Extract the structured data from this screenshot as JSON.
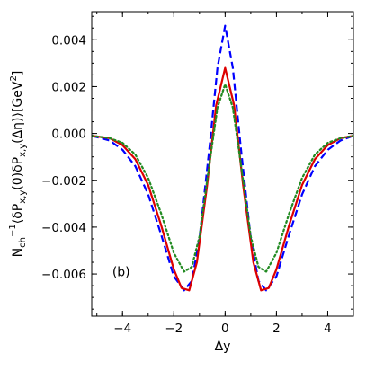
{
  "chart_data": {
    "type": "line",
    "xlabel": "Δy",
    "ylabel_parts": {
      "n": "N",
      "sub1": "ch",
      "sup1": "−1",
      "body1": "⟨δP",
      "sub2": "x,y",
      "body2": "(0)δP",
      "sub3": "x,y",
      "body3": "(Δη)⟩[GeV",
      "sup2": "2",
      "body4": "]"
    },
    "annotation": "(b)",
    "xlim": [
      -5.2,
      5.0
    ],
    "ylim": [
      -0.0078,
      0.0052
    ],
    "xticks": [
      -4,
      -2,
      0,
      2,
      4
    ],
    "xtick_labels": [
      "−4",
      "−2",
      "0",
      "2",
      "4"
    ],
    "yticks": [
      0.004,
      0.002,
      0.0,
      -0.002,
      -0.004,
      -0.006
    ],
    "ytick_labels": [
      "0.004",
      "0.002",
      "0.000",
      "−0.002",
      "−0.004",
      "−0.006"
    ],
    "grid": false,
    "series": [
      {
        "color": "#0000ff",
        "style": "dashed",
        "x": [
          -5.2,
          -4.5,
          -4.0,
          -3.5,
          -3.0,
          -2.5,
          -2.0,
          -1.6,
          -1.3,
          -1.0,
          -0.6,
          -0.3,
          0.0,
          0.3,
          0.6,
          1.0,
          1.3,
          1.6,
          2.0,
          2.5,
          3.0,
          3.5,
          4.0,
          4.5,
          5.0
        ],
        "y": [
          -0.0001,
          -0.0003,
          -0.0007,
          -0.0014,
          -0.0026,
          -0.0043,
          -0.0061,
          -0.0067,
          -0.0063,
          -0.0045,
          -0.0005,
          0.0028,
          0.0046,
          0.0028,
          -0.0005,
          -0.0045,
          -0.0063,
          -0.0067,
          -0.0061,
          -0.0043,
          -0.0026,
          -0.0014,
          -0.0007,
          -0.0003,
          -0.0001
        ]
      },
      {
        "color": "#dd0000",
        "style": "solid",
        "x": [
          -5.2,
          -4.5,
          -4.0,
          -3.5,
          -3.0,
          -2.5,
          -2.0,
          -1.7,
          -1.4,
          -1.1,
          -0.7,
          -0.35,
          0.0,
          0.35,
          0.7,
          1.1,
          1.4,
          1.7,
          2.0,
          2.5,
          3.0,
          3.5,
          4.0,
          4.5,
          5.0
        ],
        "y": [
          -0.0001,
          -0.0002,
          -0.0005,
          -0.0011,
          -0.0022,
          -0.0039,
          -0.0058,
          -0.0066,
          -0.0067,
          -0.0055,
          -0.0022,
          0.0012,
          0.0028,
          0.0012,
          -0.0022,
          -0.0055,
          -0.0067,
          -0.0066,
          -0.0058,
          -0.0039,
          -0.0022,
          -0.0011,
          -0.0005,
          -0.0002,
          -0.0001
        ]
      },
      {
        "color": "#228b22",
        "style": "dotted",
        "x": [
          -5.2,
          -4.5,
          -4.0,
          -3.5,
          -3.0,
          -2.5,
          -2.0,
          -1.6,
          -1.3,
          -1.0,
          -0.6,
          -0.3,
          0.0,
          0.3,
          0.6,
          1.0,
          1.3,
          1.6,
          2.0,
          2.5,
          3.0,
          3.5,
          4.0,
          4.5,
          5.0
        ],
        "y": [
          -0.0001,
          -0.0002,
          -0.0004,
          -0.0009,
          -0.0019,
          -0.0034,
          -0.0051,
          -0.0059,
          -0.0057,
          -0.0044,
          -0.0012,
          0.0011,
          0.0021,
          0.0011,
          -0.0012,
          -0.0044,
          -0.0057,
          -0.0059,
          -0.0051,
          -0.0034,
          -0.0019,
          -0.0009,
          -0.0004,
          -0.0002,
          -0.0001
        ]
      }
    ]
  }
}
